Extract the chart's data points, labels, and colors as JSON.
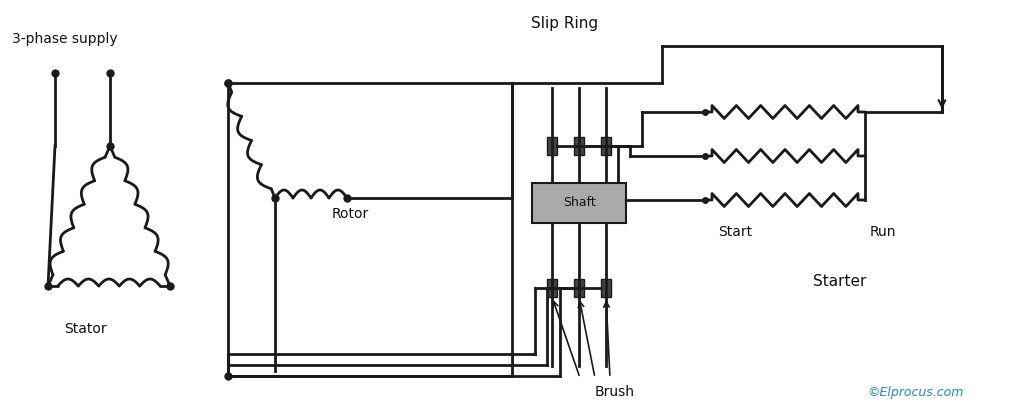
{
  "bg_color": "#ffffff",
  "line_color": "#1a1a1a",
  "shaft_facecolor": "#aaaaaa",
  "brush_facecolor": "#444444",
  "text_color": "#111111",
  "elprocus_color": "#1a8fc0",
  "label_3phase": "3-phase supply",
  "label_stator": "Stator",
  "label_rotor": "Rotor",
  "label_slip_ring": "Slip Ring",
  "label_brush": "Brush",
  "label_shaft": "Shaft",
  "label_start": "Start",
  "label_run": "Run",
  "label_starter": "Starter",
  "label_elprocus": "©Elprocus.com",
  "lw": 2.0
}
